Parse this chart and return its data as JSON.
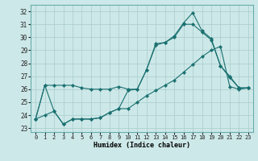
{
  "title": "",
  "xlabel": "Humidex (Indice chaleur)",
  "bg_color": "#cde8e8",
  "grid_color": "#a8cccc",
  "line_color": "#1a7070",
  "xlim": [
    -0.5,
    23.5
  ],
  "ylim": [
    22.7,
    32.5
  ],
  "yticks": [
    23,
    24,
    25,
    26,
    27,
    28,
    29,
    30,
    31,
    32
  ],
  "xticks": [
    0,
    1,
    2,
    3,
    4,
    5,
    6,
    7,
    8,
    9,
    10,
    11,
    12,
    13,
    14,
    15,
    16,
    17,
    18,
    19,
    20,
    21,
    22,
    23
  ],
  "line1_y": [
    23.7,
    26.3,
    26.3,
    26.3,
    26.3,
    26.1,
    26.0,
    26.0,
    26.0,
    26.2,
    26.0,
    26.0,
    27.5,
    29.5,
    29.6,
    30.1,
    31.1,
    31.9,
    30.5,
    29.9,
    27.8,
    27.0,
    26.1,
    26.1
  ],
  "line2_y": [
    23.7,
    26.3,
    24.3,
    23.3,
    23.7,
    23.7,
    23.7,
    23.8,
    24.2,
    24.5,
    25.9,
    26.0,
    27.5,
    29.4,
    29.6,
    30.0,
    31.0,
    31.0,
    30.4,
    29.8,
    27.8,
    26.9,
    26.1,
    26.1
  ],
  "line3_y": [
    23.7,
    24.0,
    24.3,
    23.3,
    23.7,
    23.7,
    23.7,
    23.8,
    24.2,
    24.5,
    24.5,
    25.0,
    25.5,
    25.9,
    26.3,
    26.7,
    27.3,
    27.9,
    28.5,
    29.0,
    29.3,
    26.2,
    26.0,
    26.1
  ]
}
